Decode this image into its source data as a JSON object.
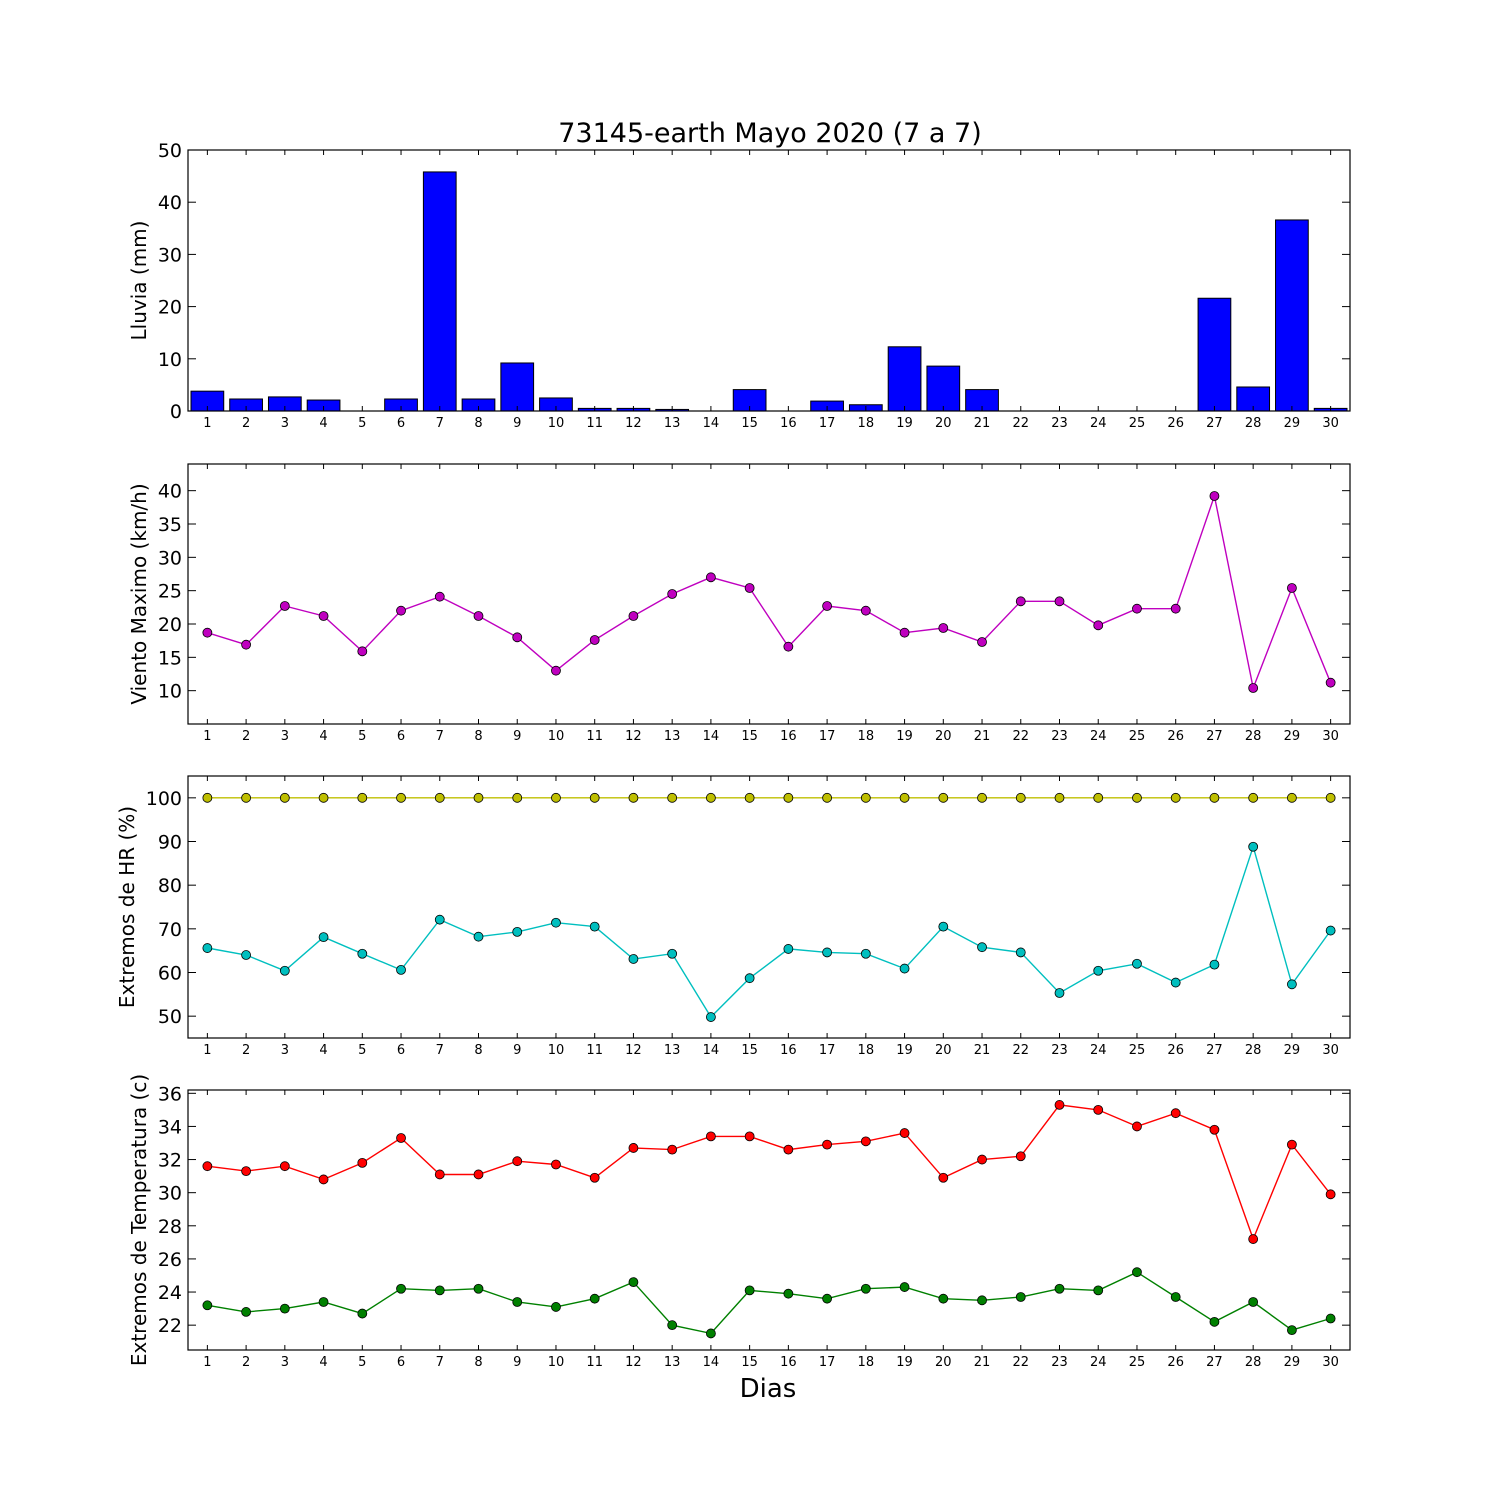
{
  "figure": {
    "title": "73145-earth Mayo 2020  (7 a 7)",
    "xlabel": "Dias"
  },
  "chart_data": [
    {
      "type": "bar",
      "ylabel": "Lluvia (mm)",
      "ylim": [
        0,
        50
      ],
      "yticks": [
        0,
        10,
        20,
        30,
        40,
        50
      ],
      "categories": [
        1,
        2,
        3,
        4,
        5,
        6,
        7,
        8,
        9,
        10,
        11,
        12,
        13,
        14,
        15,
        16,
        17,
        18,
        19,
        20,
        21,
        22,
        23,
        24,
        25,
        26,
        27,
        28,
        29,
        30
      ],
      "color": "#0000ff",
      "values": [
        3.8,
        2.3,
        2.7,
        2.1,
        0,
        2.3,
        45.8,
        2.3,
        9.2,
        2.5,
        0.5,
        0.5,
        0.3,
        0,
        4.1,
        0,
        1.9,
        1.2,
        12.3,
        8.6,
        4.1,
        0,
        0,
        0,
        0,
        0,
        21.6,
        4.6,
        36.6,
        0.5
      ]
    },
    {
      "type": "line",
      "ylabel": "Viento Maximo (km/h)",
      "ylim": [
        5,
        44
      ],
      "yticks": [
        10,
        15,
        20,
        25,
        30,
        35,
        40
      ],
      "x": [
        1,
        2,
        3,
        4,
        5,
        6,
        7,
        8,
        9,
        10,
        11,
        12,
        13,
        14,
        15,
        16,
        17,
        18,
        19,
        20,
        21,
        22,
        23,
        24,
        25,
        26,
        27,
        28,
        29,
        30
      ],
      "series": [
        {
          "color": "#bf00bf",
          "values": [
            18.7,
            16.9,
            22.7,
            21.2,
            15.9,
            22.0,
            24.1,
            21.2,
            18.0,
            13.0,
            17.6,
            21.2,
            24.5,
            27.0,
            25.4,
            16.6,
            22.7,
            22.0,
            18.7,
            19.4,
            17.3,
            23.4,
            23.4,
            19.8,
            22.3,
            22.3,
            39.2,
            10.4,
            25.4,
            11.2
          ]
        }
      ]
    },
    {
      "type": "line",
      "ylabel": "Extremos de HR (%)",
      "ylim": [
        45,
        105
      ],
      "yticks": [
        50,
        60,
        70,
        80,
        90,
        100
      ],
      "x": [
        1,
        2,
        3,
        4,
        5,
        6,
        7,
        8,
        9,
        10,
        11,
        12,
        13,
        14,
        15,
        16,
        17,
        18,
        19,
        20,
        21,
        22,
        23,
        24,
        25,
        26,
        27,
        28,
        29,
        30
      ],
      "series": [
        {
          "color": "#bfbf00",
          "values": [
            100,
            100,
            100,
            100,
            100,
            100,
            100,
            100,
            100,
            100,
            100,
            100,
            100,
            100,
            100,
            100,
            100,
            100,
            100,
            100,
            100,
            100,
            100,
            100,
            100,
            100,
            100,
            100,
            100,
            100
          ]
        },
        {
          "color": "#00bfbf",
          "values": [
            65.6,
            64.0,
            60.4,
            68.1,
            64.3,
            60.6,
            72.1,
            68.2,
            69.3,
            71.4,
            70.5,
            63.1,
            64.3,
            49.8,
            58.7,
            65.4,
            64.6,
            64.3,
            60.9,
            70.5,
            65.8,
            64.6,
            55.3,
            60.4,
            62.0,
            57.7,
            61.8,
            88.8,
            57.3,
            69.6
          ]
        }
      ]
    },
    {
      "type": "line",
      "ylabel": "Extremos de Temperatura (c)",
      "ylim": [
        20.5,
        36.2
      ],
      "yticks": [
        22,
        24,
        26,
        28,
        30,
        32,
        34,
        36
      ],
      "x": [
        1,
        2,
        3,
        4,
        5,
        6,
        7,
        8,
        9,
        10,
        11,
        12,
        13,
        14,
        15,
        16,
        17,
        18,
        19,
        20,
        21,
        22,
        23,
        24,
        25,
        26,
        27,
        28,
        29,
        30
      ],
      "series": [
        {
          "color": "#ff0000",
          "values": [
            31.6,
            31.3,
            31.6,
            30.8,
            31.8,
            33.3,
            31.1,
            31.1,
            31.9,
            31.7,
            30.9,
            32.7,
            32.6,
            33.4,
            33.4,
            32.6,
            32.9,
            33.1,
            33.6,
            30.9,
            32.0,
            32.2,
            35.3,
            35.0,
            34.0,
            34.8,
            33.8,
            27.2,
            32.9,
            29.9
          ]
        },
        {
          "color": "#008000",
          "values": [
            23.2,
            22.8,
            23.0,
            23.4,
            22.7,
            24.2,
            24.1,
            24.2,
            23.4,
            23.1,
            23.6,
            24.6,
            22.0,
            21.5,
            24.1,
            23.9,
            23.6,
            24.2,
            24.3,
            23.6,
            23.5,
            23.7,
            24.2,
            24.1,
            25.2,
            23.7,
            22.2,
            23.4,
            21.7,
            22.4
          ]
        }
      ]
    }
  ]
}
